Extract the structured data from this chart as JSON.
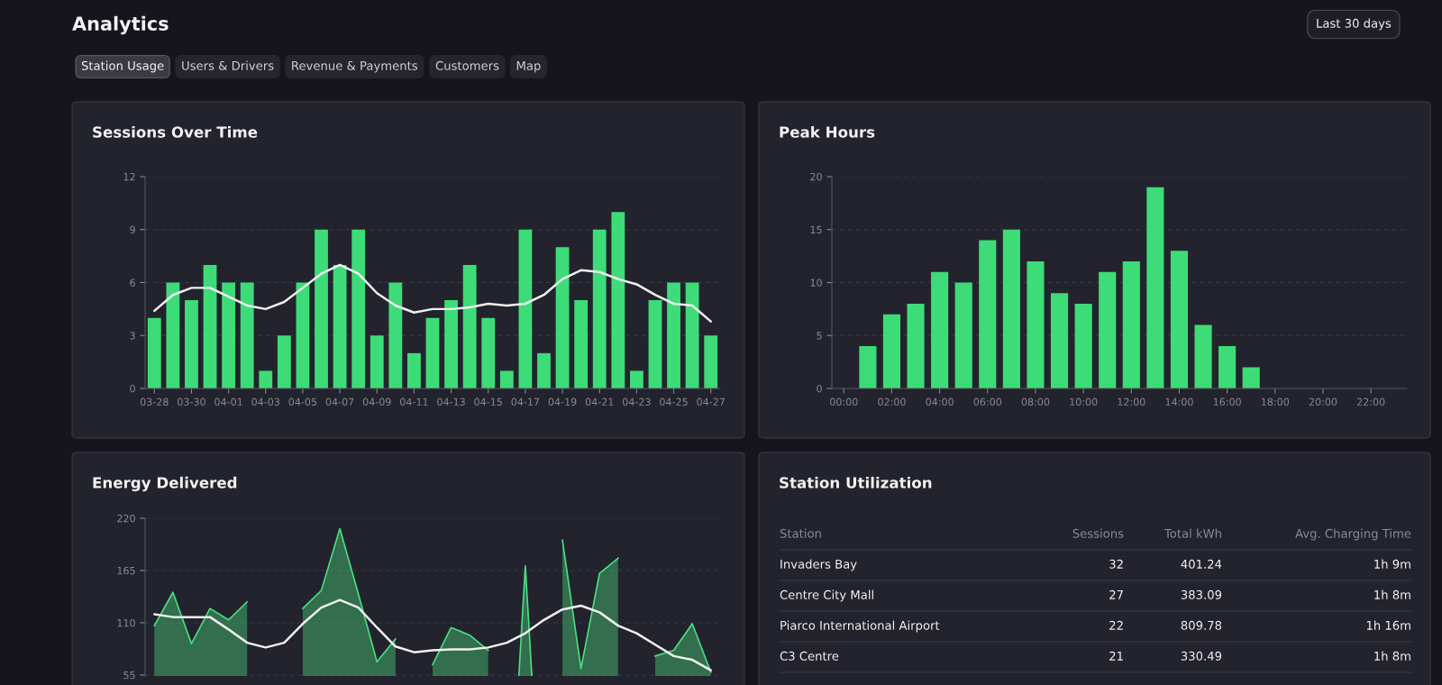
{
  "chart_data": [
    {
      "type": "other",
      "title": "Analytics",
      "annotations": [
        "Station Usage",
        "Users & Drivers",
        "Revenue & Payments",
        "Customers",
        "Map",
        "Last 30 days"
      ]
    },
    {
      "type": "bar",
      "title": "Sessions Over Time",
      "categories": [
        "03-28",
        null,
        "03-30",
        null,
        "04-01",
        null,
        "04-03",
        null,
        "04-05",
        null,
        "04-07",
        null,
        "04-09",
        null,
        "04-11",
        null,
        "04-13",
        null,
        "04-15",
        null,
        "04-17",
        null,
        "04-19",
        null,
        "04-21",
        null,
        "04-23",
        null,
        "04-25",
        null,
        "04-27"
      ],
      "series": [
        {
          "type": "bar",
          "color": "#3ddc78",
          "values": [
            4,
            6,
            5,
            7,
            6,
            6,
            1,
            3,
            6,
            9,
            7,
            9,
            3,
            6,
            2,
            4,
            5,
            7,
            4,
            1,
            9,
            2,
            8,
            5,
            9,
            10,
            1,
            5,
            6,
            6,
            3
          ]
        },
        {
          "type": "line",
          "color": "#f0f0f0",
          "values": [
            4.4,
            5.3,
            5.7,
            5.7,
            5.2,
            4.7,
            4.5,
            4.9,
            5.7,
            6.5,
            7.0,
            6.5,
            5.4,
            4.7,
            4.3,
            4.5,
            4.5,
            4.6,
            4.8,
            4.7,
            4.8,
            5.3,
            6.2,
            6.7,
            6.6,
            6.2,
            5.9,
            5.3,
            4.8,
            4.7,
            3.8
          ]
        }
      ],
      "ylim": [
        0,
        12
      ],
      "yticks": [
        0,
        3,
        6,
        9,
        12
      ],
      "grid": "y"
    },
    {
      "type": "bar",
      "title": "Peak Hours",
      "categories": [
        "00:00",
        null,
        "02:00",
        null,
        "04:00",
        null,
        "06:00",
        null,
        "08:00",
        null,
        "10:00",
        null,
        "12:00",
        null,
        "14:00",
        null,
        "16:00",
        null,
        "18:00",
        null,
        "20:00",
        null,
        "22:00",
        null
      ],
      "series": [
        {
          "type": "bar",
          "color": "#3ddc78",
          "values": [
            0,
            4,
            7,
            8,
            11,
            10,
            14,
            15,
            12,
            9,
            8,
            11,
            12,
            19,
            13,
            6,
            4,
            2,
            0,
            0,
            0,
            0,
            0,
            0
          ]
        }
      ],
      "ylim": [
        0,
        20
      ],
      "yticks": [
        0,
        5,
        10,
        15,
        20
      ],
      "grid": "y"
    },
    {
      "type": "area",
      "title": "Energy Delivered",
      "categories": [
        null,
        null,
        null,
        null,
        null,
        null,
        null,
        null,
        null,
        null,
        null,
        null,
        null,
        null,
        null,
        null,
        null,
        null,
        null,
        null,
        null,
        null,
        null,
        null,
        null,
        null,
        null,
        null,
        null,
        null,
        null
      ],
      "series": [
        {
          "type": "area",
          "color": "#4ade80",
          "values": [
            107,
            142,
            88,
            125,
            113,
            132,
            null,
            null,
            125,
            144,
            209,
            140,
            69,
            93,
            null,
            66,
            105,
            97,
            81,
            null,
            170,
            null,
            197,
            62,
            162,
            178,
            null,
            75,
            81,
            109,
            58
          ]
        },
        {
          "type": "line",
          "color": "#f0f0f0",
          "values": [
            119,
            116,
            116,
            116,
            103,
            89,
            84,
            89,
            109,
            126,
            134,
            126,
            105,
            85,
            79,
            81,
            82,
            82,
            84,
            89,
            99,
            113,
            124,
            128,
            121,
            107,
            99,
            87,
            75,
            71,
            60
          ]
        }
      ],
      "ylim": [
        54,
        220
      ],
      "yticks": [
        55,
        110,
        165,
        220
      ],
      "grid": "y",
      "tick_labels": "y"
    },
    {
      "type": "other",
      "title": "Station Utilization",
      "annotations": [
        "Station",
        "Sessions",
        "Total kWh",
        "Avg. Charging Time",
        "Invaders Bay",
        "32",
        "401.24",
        "1h 9m",
        "Centre City Mall",
        "27",
        "383.09",
        "1h 8m",
        "Piarco International Airport",
        "22",
        "809.78",
        "1h 16m",
        "C3 Centre",
        "21",
        "330.49",
        "1h 8m"
      ]
    }
  ]
}
